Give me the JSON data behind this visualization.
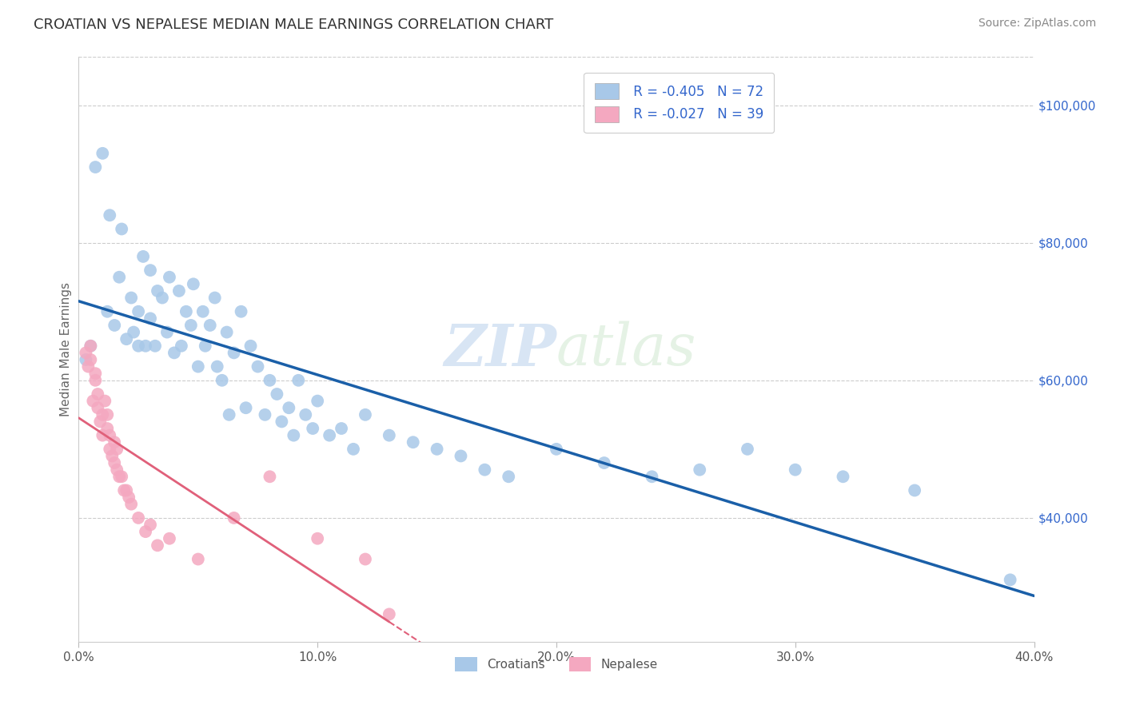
{
  "title": "CROATIAN VS NEPALESE MEDIAN MALE EARNINGS CORRELATION CHART",
  "source": "Source: ZipAtlas.com",
  "ylabel": "Median Male Earnings",
  "xlim": [
    0.0,
    0.4
  ],
  "ylim": [
    22000,
    107000
  ],
  "yticks": [
    40000,
    60000,
    80000,
    100000
  ],
  "ytick_labels": [
    "$40,000",
    "$60,000",
    "$80,000",
    "$100,000"
  ],
  "xticks": [
    0.0,
    0.1,
    0.2,
    0.3,
    0.4
  ],
  "xtick_labels": [
    "0.0%",
    "10.0%",
    "20.0%",
    "30.0%",
    "40.0%"
  ],
  "legend_croatians": "Croatians",
  "legend_nepalese": "Nepalese",
  "r_croatian": -0.405,
  "n_croatian": 72,
  "r_nepalese": -0.027,
  "n_nepalese": 39,
  "blue_color": "#a8c8e8",
  "pink_color": "#f4a8c0",
  "blue_line_color": "#1a5fa8",
  "pink_line_color": "#e0607a",
  "watermark_zip": "ZIP",
  "watermark_atlas": "atlas",
  "background_color": "#ffffff",
  "croatian_x": [
    0.003,
    0.005,
    0.007,
    0.01,
    0.012,
    0.013,
    0.015,
    0.017,
    0.018,
    0.02,
    0.022,
    0.023,
    0.025,
    0.025,
    0.027,
    0.028,
    0.03,
    0.03,
    0.032,
    0.033,
    0.035,
    0.037,
    0.038,
    0.04,
    0.042,
    0.043,
    0.045,
    0.047,
    0.048,
    0.05,
    0.052,
    0.053,
    0.055,
    0.057,
    0.058,
    0.06,
    0.062,
    0.063,
    0.065,
    0.068,
    0.07,
    0.072,
    0.075,
    0.078,
    0.08,
    0.083,
    0.085,
    0.088,
    0.09,
    0.092,
    0.095,
    0.098,
    0.1,
    0.105,
    0.11,
    0.115,
    0.12,
    0.13,
    0.14,
    0.15,
    0.16,
    0.17,
    0.18,
    0.2,
    0.22,
    0.24,
    0.26,
    0.28,
    0.3,
    0.32,
    0.35,
    0.39
  ],
  "croatian_y": [
    63000,
    65000,
    91000,
    93000,
    70000,
    84000,
    68000,
    75000,
    82000,
    66000,
    72000,
    67000,
    65000,
    70000,
    78000,
    65000,
    76000,
    69000,
    65000,
    73000,
    72000,
    67000,
    75000,
    64000,
    73000,
    65000,
    70000,
    68000,
    74000,
    62000,
    70000,
    65000,
    68000,
    72000,
    62000,
    60000,
    67000,
    55000,
    64000,
    70000,
    56000,
    65000,
    62000,
    55000,
    60000,
    58000,
    54000,
    56000,
    52000,
    60000,
    55000,
    53000,
    57000,
    52000,
    53000,
    50000,
    55000,
    52000,
    51000,
    50000,
    49000,
    47000,
    46000,
    50000,
    48000,
    46000,
    47000,
    50000,
    47000,
    46000,
    44000,
    31000
  ],
  "nepalese_x": [
    0.003,
    0.004,
    0.005,
    0.005,
    0.006,
    0.007,
    0.007,
    0.008,
    0.008,
    0.009,
    0.01,
    0.01,
    0.011,
    0.012,
    0.012,
    0.013,
    0.013,
    0.014,
    0.015,
    0.015,
    0.016,
    0.016,
    0.017,
    0.018,
    0.019,
    0.02,
    0.021,
    0.022,
    0.025,
    0.028,
    0.03,
    0.033,
    0.038,
    0.05,
    0.065,
    0.08,
    0.1,
    0.12,
    0.13
  ],
  "nepalese_y": [
    64000,
    62000,
    63000,
    65000,
    57000,
    61000,
    60000,
    56000,
    58000,
    54000,
    55000,
    52000,
    57000,
    53000,
    55000,
    50000,
    52000,
    49000,
    48000,
    51000,
    47000,
    50000,
    46000,
    46000,
    44000,
    44000,
    43000,
    42000,
    40000,
    38000,
    39000,
    36000,
    37000,
    34000,
    40000,
    46000,
    37000,
    34000,
    26000
  ]
}
